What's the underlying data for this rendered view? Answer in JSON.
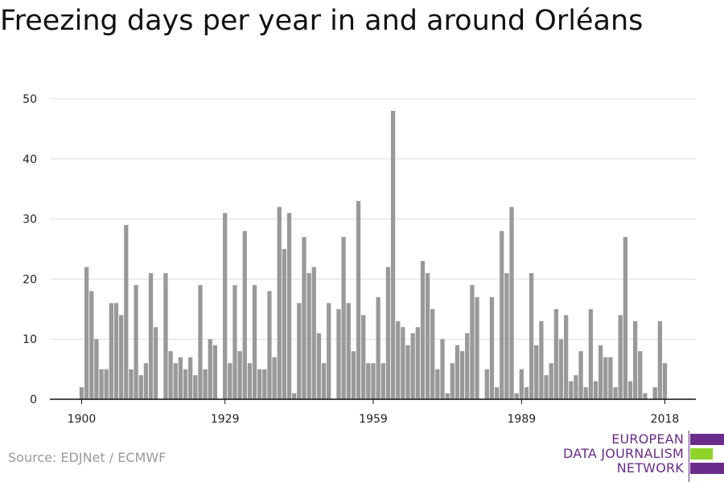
{
  "title": "Freezing days per year in and around Orléans",
  "source": "Source: EDJNet / ECMWF",
  "logo": {
    "line1": "EUROPEAN",
    "line2": "DATA JOURNALISM",
    "line3": "NETWORK",
    "colors": [
      "#6a2c8a",
      "#8ed42b",
      "#6a2c8a"
    ]
  },
  "chart_data": {
    "type": "bar",
    "title": "Freezing days per year in and around Orléans",
    "xlabel": "",
    "ylabel": "",
    "x_start": 1900,
    "x_end": 2018,
    "xticks": [
      1900,
      1929,
      1959,
      1989,
      2018
    ],
    "yticks": [
      0,
      10,
      20,
      30,
      40,
      50
    ],
    "ylim": [
      0,
      50
    ],
    "grid": true,
    "bar_color": "#999999",
    "values": [
      2,
      22,
      18,
      10,
      5,
      5,
      16,
      16,
      14,
      29,
      5,
      19,
      4,
      6,
      21,
      12,
      0,
      21,
      8,
      6,
      7,
      5,
      7,
      4,
      19,
      5,
      10,
      9,
      0,
      31,
      6,
      19,
      8,
      28,
      6,
      19,
      5,
      5,
      18,
      7,
      32,
      25,
      31,
      1,
      16,
      27,
      21,
      22,
      11,
      6,
      16,
      0,
      15,
      27,
      16,
      8,
      33,
      14,
      6,
      6,
      17,
      6,
      22,
      48,
      13,
      12,
      9,
      11,
      12,
      23,
      21,
      15,
      5,
      10,
      1,
      6,
      9,
      8,
      11,
      19,
      17,
      0,
      5,
      17,
      2,
      28,
      21,
      32,
      1,
      5,
      2,
      21,
      9,
      13,
      4,
      6,
      15,
      10,
      14,
      3,
      4,
      8,
      2,
      15,
      3,
      9,
      7,
      7,
      2,
      14,
      27,
      3,
      13,
      8,
      1,
      0,
      2,
      13,
      6
    ]
  }
}
